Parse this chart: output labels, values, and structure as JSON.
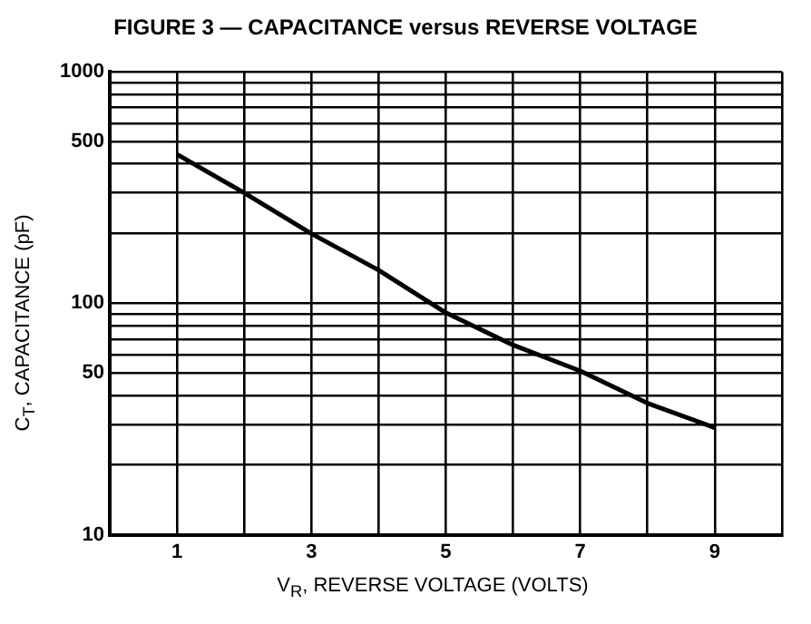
{
  "chart_data": {
    "type": "line",
    "title": "FIGURE 3 — CAPACITANCE versus REVERSE VOLTAGE",
    "xlabel": "V$_{R}$, REVERSE VOLTAGE (VOLTS)",
    "ylabel": "C$_{T}$, CAPACITANCE (pF)",
    "x": [
      1,
      2,
      3,
      4,
      5,
      6,
      7,
      8,
      9
    ],
    "series": [
      {
        "color": "#000000",
        "values": [
          440,
          300,
          200,
          139,
          91,
          66,
          51,
          37,
          29
        ]
      }
    ],
    "xlim": [
      0,
      10
    ],
    "xticks": [
      {
        "value": 0,
        "label": null
      },
      1,
      {
        "value": 2,
        "label": null
      },
      3,
      {
        "value": 4,
        "label": null
      },
      5,
      {
        "value": 6,
        "label": null
      },
      7,
      {
        "value": 8,
        "label": null
      },
      9,
      {
        "value": 10,
        "label": null
      }
    ],
    "ylim": [
      10,
      1000
    ],
    "yticks": [
      10,
      {
        "value": 20,
        "label": null
      },
      {
        "value": 30,
        "label": null
      },
      {
        "value": 40,
        "label": null
      },
      50,
      {
        "value": 60,
        "label": null
      },
      {
        "value": 70,
        "label": null
      },
      {
        "value": 80,
        "label": null
      },
      {
        "value": 90,
        "label": null
      },
      100,
      {
        "value": 200,
        "label": null
      },
      {
        "value": 300,
        "label": null
      },
      {
        "value": 400,
        "label": null
      },
      500,
      {
        "value": 600,
        "label": null
      },
      {
        "value": 700,
        "label": null
      },
      {
        "value": 800,
        "label": null
      },
      {
        "value": 900,
        "label": null
      },
      1000
    ],
    "log": true,
    "grid": true,
    "legend": false,
    "marker": "none",
    "line_style": "solid"
  }
}
